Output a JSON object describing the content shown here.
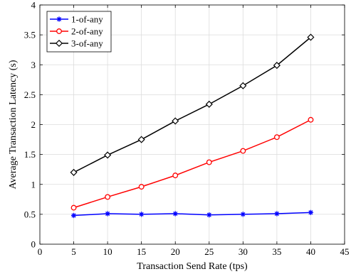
{
  "chart_data": {
    "type": "line",
    "xlabel": "Transaction Send Rate (tps)",
    "ylabel": "Average Transaction Latency (s)",
    "xlim": [
      0,
      45
    ],
    "ylim": [
      0,
      4
    ],
    "xticks": [
      "0",
      "5",
      "10",
      "15",
      "20",
      "25",
      "30",
      "35",
      "40",
      "45"
    ],
    "yticks": [
      "0",
      "0.5",
      "1",
      "1.5",
      "2",
      "2.5",
      "3",
      "3.5",
      "4"
    ],
    "grid": true,
    "legend_position": "top-left",
    "x": [
      5,
      10,
      15,
      20,
      25,
      30,
      35,
      40
    ],
    "series": [
      {
        "name": "1-of-any",
        "color": "#0000ff",
        "marker": "asterisk",
        "values": [
          0.48,
          0.51,
          0.5,
          0.51,
          0.49,
          0.5,
          0.51,
          0.53
        ]
      },
      {
        "name": "2-of-any",
        "color": "#ff0000",
        "marker": "circle",
        "values": [
          0.61,
          0.79,
          0.96,
          1.15,
          1.37,
          1.56,
          1.79,
          2.08
        ]
      },
      {
        "name": "3-of-any",
        "color": "#000000",
        "marker": "diamond",
        "values": [
          1.2,
          1.49,
          1.75,
          2.06,
          2.34,
          2.65,
          2.99,
          3.46
        ]
      }
    ]
  }
}
